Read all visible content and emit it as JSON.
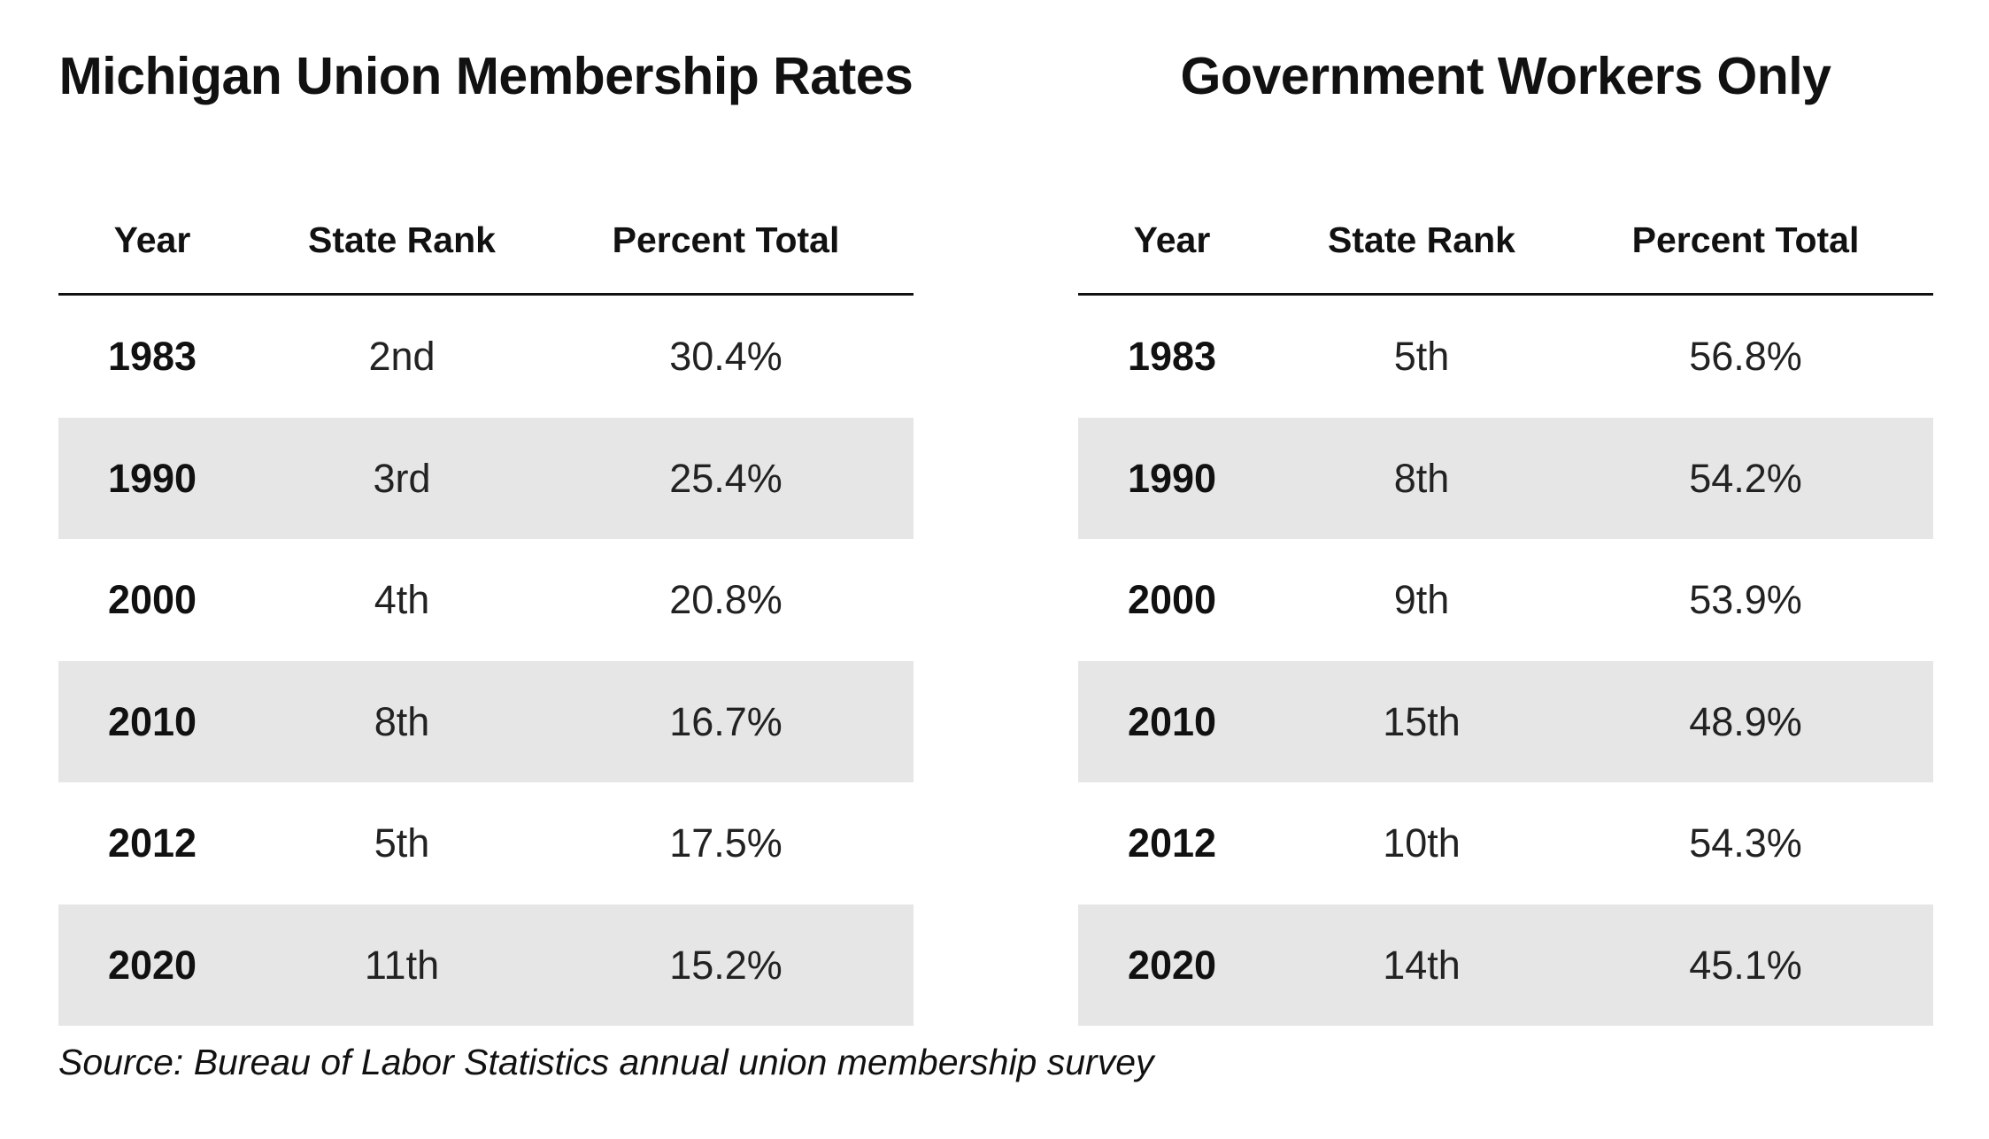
{
  "chart_data": [
    {
      "type": "table",
      "title": "Michigan Union Membership Rates",
      "columns": [
        "Year",
        "State Rank",
        "Percent Total"
      ],
      "rows": [
        [
          "1983",
          "2nd",
          "30.4%"
        ],
        [
          "1990",
          "3rd",
          "25.4%"
        ],
        [
          "2000",
          "4th",
          "20.8%"
        ],
        [
          "2010",
          "8th",
          "16.7%"
        ],
        [
          "2012",
          "5th",
          "17.5%"
        ],
        [
          "2020",
          "11th",
          "15.2%"
        ]
      ],
      "striped_row_indexes": [
        1,
        3,
        5
      ],
      "position": "left"
    },
    {
      "type": "table",
      "title": "Government Workers Only",
      "columns": [
        "Year",
        "State Rank",
        "Percent Total"
      ],
      "rows": [
        [
          "1983",
          "5th",
          "56.8%"
        ],
        [
          "1990",
          "8th",
          "54.2%"
        ],
        [
          "2000",
          "9th",
          "53.9%"
        ],
        [
          "2010",
          "15th",
          "48.9%"
        ],
        [
          "2012",
          "10th",
          "54.3%"
        ],
        [
          "2020",
          "14th",
          "45.1%"
        ]
      ],
      "striped_row_indexes": [
        1,
        3,
        5
      ],
      "position": "right"
    }
  ],
  "source_note": "Source: Bureau of Labor Statistics annual union membership survey",
  "colors": {
    "background": "#ffffff",
    "stripe": "#e6e6e6",
    "rule": "#111111",
    "text": "#111111",
    "data_text": "#222222"
  }
}
